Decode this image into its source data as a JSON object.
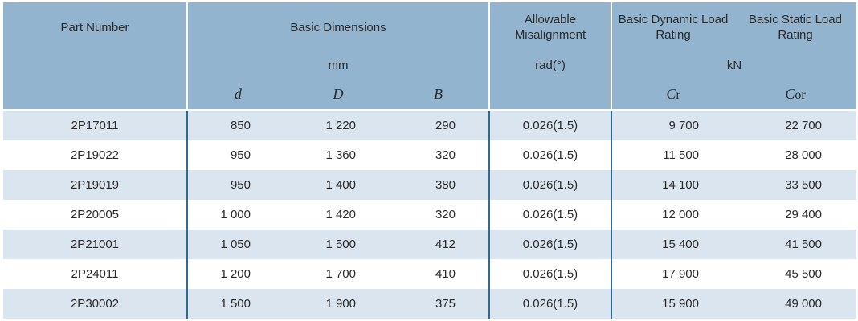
{
  "colors": {
    "header_bg": "#92b4ce",
    "row_alt_bg": "#dbe5ef",
    "divider": "#2e6a93",
    "text": "#2a2a2a"
  },
  "table": {
    "header": {
      "part_number": "Part Number",
      "basic_dimensions": "Basic Dimensions",
      "allowable_misalignment": "Allowable Misalignment",
      "basic_dynamic_load_rating": "Basic Dynamic Load Rating",
      "basic_static_load_rating": "Basic Static Load Rating",
      "unit_mm": "mm",
      "unit_rad": "rad(°)",
      "unit_kn": "kN",
      "sym_d": "d",
      "sym_D": "D",
      "sym_B": "B",
      "sym_C_dynamic": "C",
      "sym_C_dynamic_suffix": "r",
      "sym_C_static": "C",
      "sym_C_static_suffix": "or"
    },
    "rows": [
      {
        "part": "2P17011",
        "d": "850",
        "D": "1 220",
        "B": "290",
        "mis": "0.026(1.5)",
        "cr": "9 700",
        "cor": "22 700"
      },
      {
        "part": "2P19022",
        "d": "950",
        "D": "1 360",
        "B": "320",
        "mis": "0.026(1.5)",
        "cr": "11 500",
        "cor": "28 000"
      },
      {
        "part": "2P19019",
        "d": "950",
        "D": "1 400",
        "B": "380",
        "mis": "0.026(1.5)",
        "cr": "14 100",
        "cor": "33 500"
      },
      {
        "part": "2P20005",
        "d": "1 000",
        "D": "1 420",
        "B": "320",
        "mis": "0.026(1.5)",
        "cr": "12 000",
        "cor": "29 400"
      },
      {
        "part": "2P21001",
        "d": "1 050",
        "D": "1 500",
        "B": "412",
        "mis": "0.026(1.5)",
        "cr": "15 400",
        "cor": "41 500"
      },
      {
        "part": "2P24011",
        "d": "1 200",
        "D": "1 700",
        "B": "410",
        "mis": "0.026(1.5)",
        "cr": "17 900",
        "cor": "45 500"
      },
      {
        "part": "2P30002",
        "d": "1 500",
        "D": "1 900",
        "B": "375",
        "mis": "0.026(1.5)",
        "cr": "15 900",
        "cor": "49 000"
      }
    ]
  }
}
